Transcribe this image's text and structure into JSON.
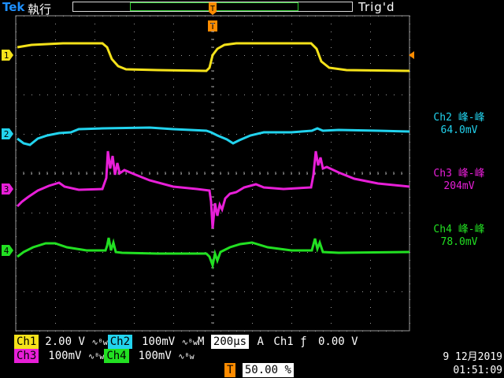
{
  "header": {
    "brand": "Tek",
    "mode": "執行",
    "trigger_state": "Trig'd"
  },
  "channels": [
    {
      "id": "1",
      "color": "#f5e21a"
    },
    {
      "id": "2",
      "color": "#22d3ee"
    },
    {
      "id": "3",
      "color": "#e81fd8"
    },
    {
      "id": "4",
      "color": "#22e022"
    }
  ],
  "measurements": [
    {
      "label": "Ch2 峰-峰",
      "value": "64.0mV",
      "color": "#22d3ee"
    },
    {
      "label": "Ch3 峰-峰",
      "value": "204mV",
      "color": "#e81fd8"
    },
    {
      "label": "Ch4 峰-峰",
      "value": "78.0mV",
      "color": "#22e022"
    }
  ],
  "status": {
    "ch1_label": "Ch1",
    "ch1_scale": "2.00 V",
    "ch2_label": "Ch2",
    "ch2_scale": "100mV",
    "ch3_label": "Ch3",
    "ch3_scale": "100mV",
    "ch4_label": "Ch4",
    "ch4_scale": "100mV",
    "bw_symbol": "∿ᴮw",
    "timebase_label": "M",
    "timebase": "200μs",
    "trigger_prefix": "A",
    "trigger_source": "Ch1",
    "trigger_slope": "ƒ",
    "trigger_level": "0.00 V",
    "trigger_marker": "T",
    "trigger_position": "50.00 %"
  },
  "datetime": {
    "date": "9 12月2019",
    "time": "01:51:09"
  },
  "colors": {
    "background": "#000000",
    "grid": "#9a9a9a",
    "trigger_orange": "#ff8c00"
  }
}
